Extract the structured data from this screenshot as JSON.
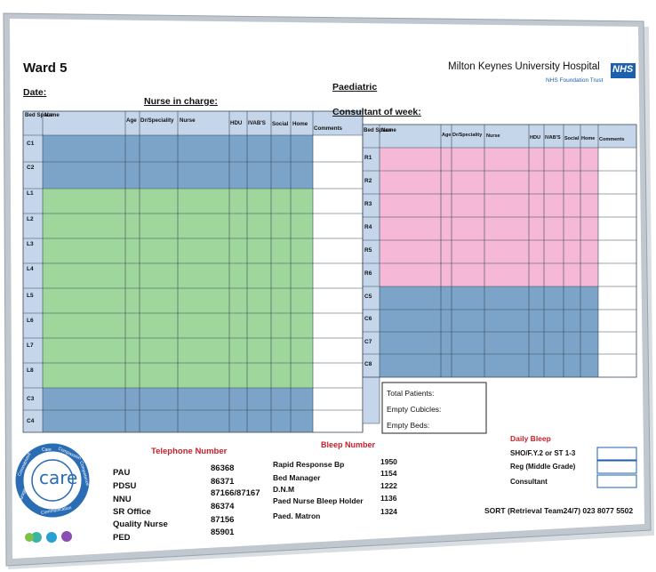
{
  "board": {
    "title": "Ward 5",
    "date_label": "Date:",
    "nurse_in_charge_label": "Nurse in charge:",
    "paediatric_label": "Paediatric",
    "consultant_label": "Consultant of week:",
    "hospital_name": "Milton Keynes University Hospital",
    "nhs_logo_text": "NHS",
    "trust_name": "NHS Foundation Trust"
  },
  "left_table": {
    "bed_space_header": "Bed Space",
    "columns": [
      "Name",
      "Age",
      "Dr/Speciality",
      "Nurse",
      "HDU",
      "IVAB'S",
      "Social",
      "Home",
      "Comments"
    ],
    "rows": [
      "C1",
      "C2",
      "L1",
      "L2",
      "L3",
      "L4",
      "L5",
      "L6",
      "L7",
      "L8",
      "C3",
      "C4"
    ]
  },
  "right_table": {
    "bed_space_header": "Bed Space",
    "columns": [
      "Name",
      "Age",
      "Dr/Speciality",
      "Nurse",
      "HDU",
      "IVAB'S",
      "Social",
      "Home",
      "Comments"
    ],
    "rows": [
      "R1",
      "R2",
      "R3",
      "R4",
      "R5",
      "R6",
      "C5",
      "C6",
      "C7",
      "C8"
    ]
  },
  "summary": {
    "total_patients": "Total Patients:",
    "empty_cubicles": "Empty Cubicles:",
    "empty_beds": "Empty Beds:"
  },
  "telephone": {
    "title": "Telephone Number",
    "entries": [
      {
        "name": "PAU",
        "number": "86368"
      },
      {
        "name": "PDSU",
        "number": "86371"
      },
      {
        "name": "NNU",
        "number": "87166/87167"
      },
      {
        "name": "SR Office",
        "number": "86374"
      },
      {
        "name": "Quality Nurse",
        "number": "87156"
      },
      {
        "name": "PED",
        "number": "85901"
      }
    ]
  },
  "bleep": {
    "title": "Bleep Number",
    "entries": [
      {
        "name": "Rapid Response Bp",
        "number": "1950"
      },
      {
        "name": "Bed Manager",
        "number": "1154"
      },
      {
        "name": "D.N.M",
        "number": "1222"
      },
      {
        "name": "Paed Nurse Bleep Holder",
        "number": "1136"
      },
      {
        "name": "Paed. Matron",
        "number": "1324"
      }
    ]
  },
  "daily_bleep": {
    "title": "Daily Bleep",
    "entries": [
      "SHO/F.Y.2 or ST 1-3",
      "Reg (Middle Grade)",
      "Consultant"
    ]
  },
  "sort_line": "SORT (Retrieval Team24/7) 023 8077 5502",
  "care_logo": {
    "center": "care",
    "ring": [
      "Care",
      "Compassion",
      "Competence",
      "Communication",
      "Courage",
      "Commitment"
    ]
  },
  "colors": {
    "frame": "#b9c0c8",
    "header": "#c5d5ea",
    "blue_fill": "#7ba4c8",
    "green_fill": "#9fd69c",
    "pink_fill": "#f5b8d6",
    "red_text": "#c8202a",
    "nhs_blue": "#1c5fae"
  }
}
